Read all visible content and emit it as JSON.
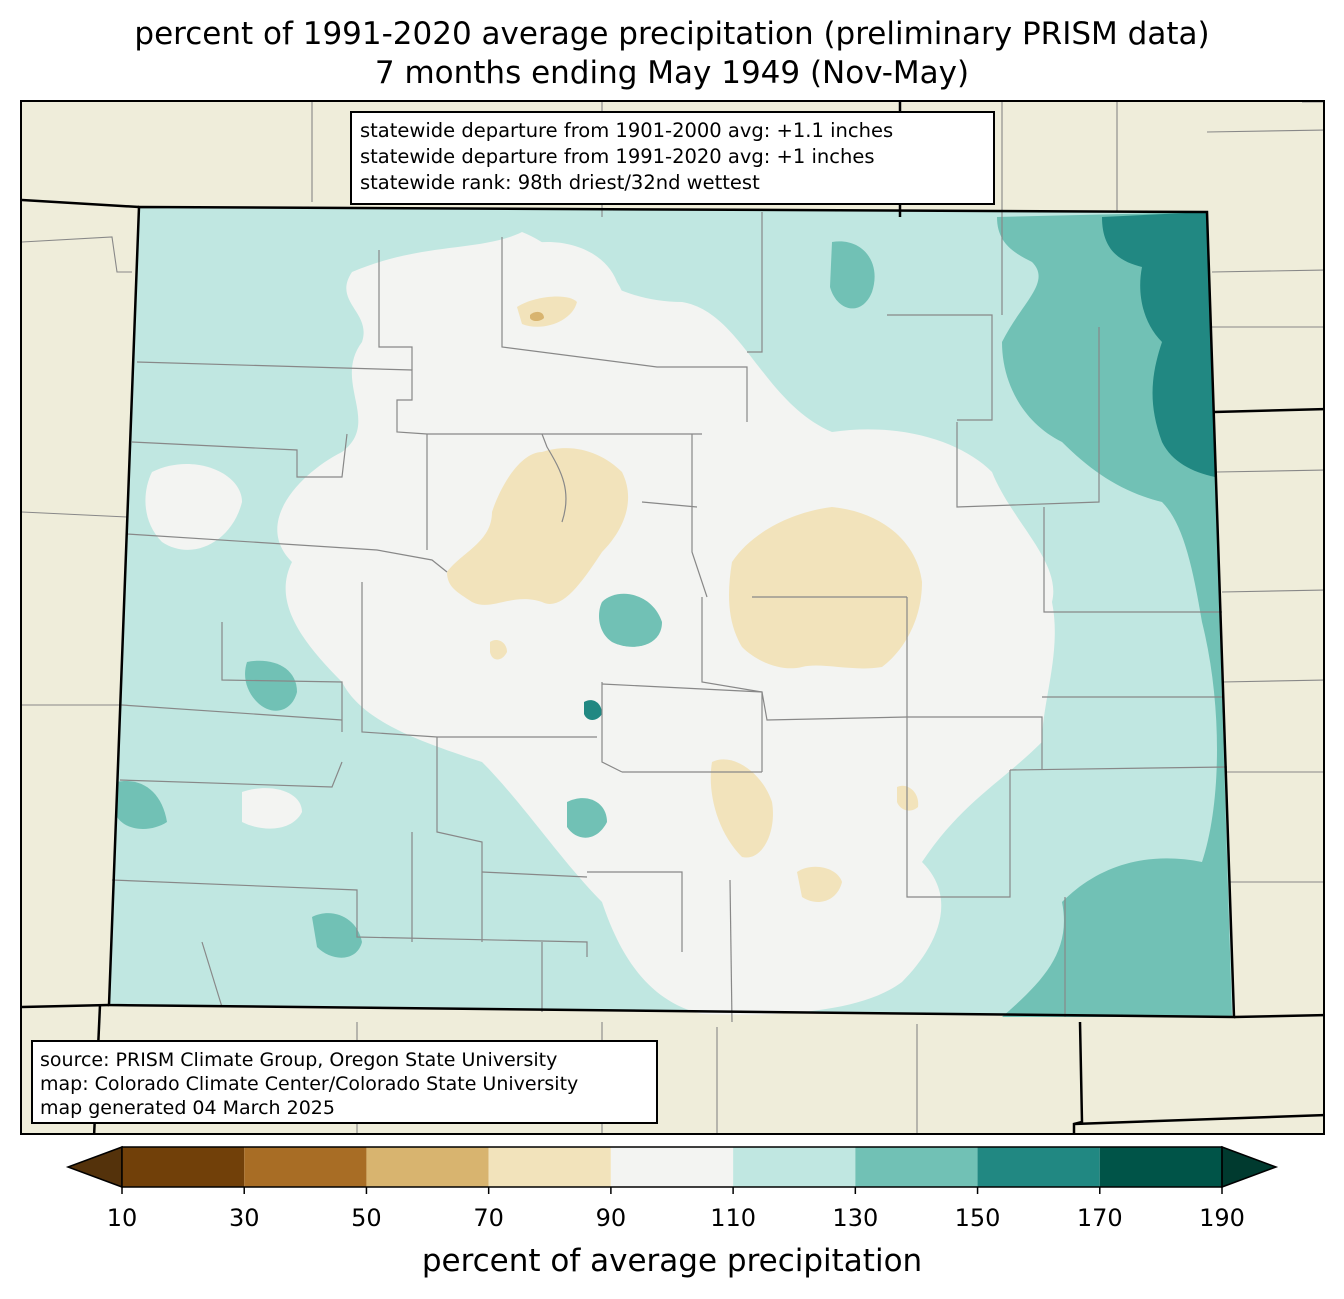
{
  "title": {
    "line1": "percent of 1991-2020 average precipitation (preliminary PRISM data)",
    "line2": "7 months ending May 1949 (Nov-May)"
  },
  "stats": {
    "line1": "statewide departure from 1901-2000 avg: +1.1 inches",
    "line2": "statewide departure from 1991-2020 avg: +1 inches",
    "line3": "statewide rank: 98th driest/32nd wettest"
  },
  "source": {
    "line1": "source: PRISM Climate Group, Oregon State University",
    "line2": "map: Colorado Climate Center/Colorado State University",
    "line3": "map generated 04 March 2025"
  },
  "colorbar": {
    "label": "percent of average precipitation",
    "ticks": [
      "10",
      "30",
      "50",
      "70",
      "90",
      "110",
      "130",
      "150",
      "170",
      "190"
    ],
    "colors": [
      "#714009",
      "#a86d25",
      "#d8b46f",
      "#f2e3bb",
      "#f3f4f2",
      "#c0e7e1",
      "#71c1b5",
      "#218882",
      "#005448"
    ],
    "under_color": "#54320b",
    "over_color": "#003a2f"
  },
  "map_colors": {
    "land": "#efedda",
    "state_border": "#000000",
    "county_border": "#888888"
  }
}
